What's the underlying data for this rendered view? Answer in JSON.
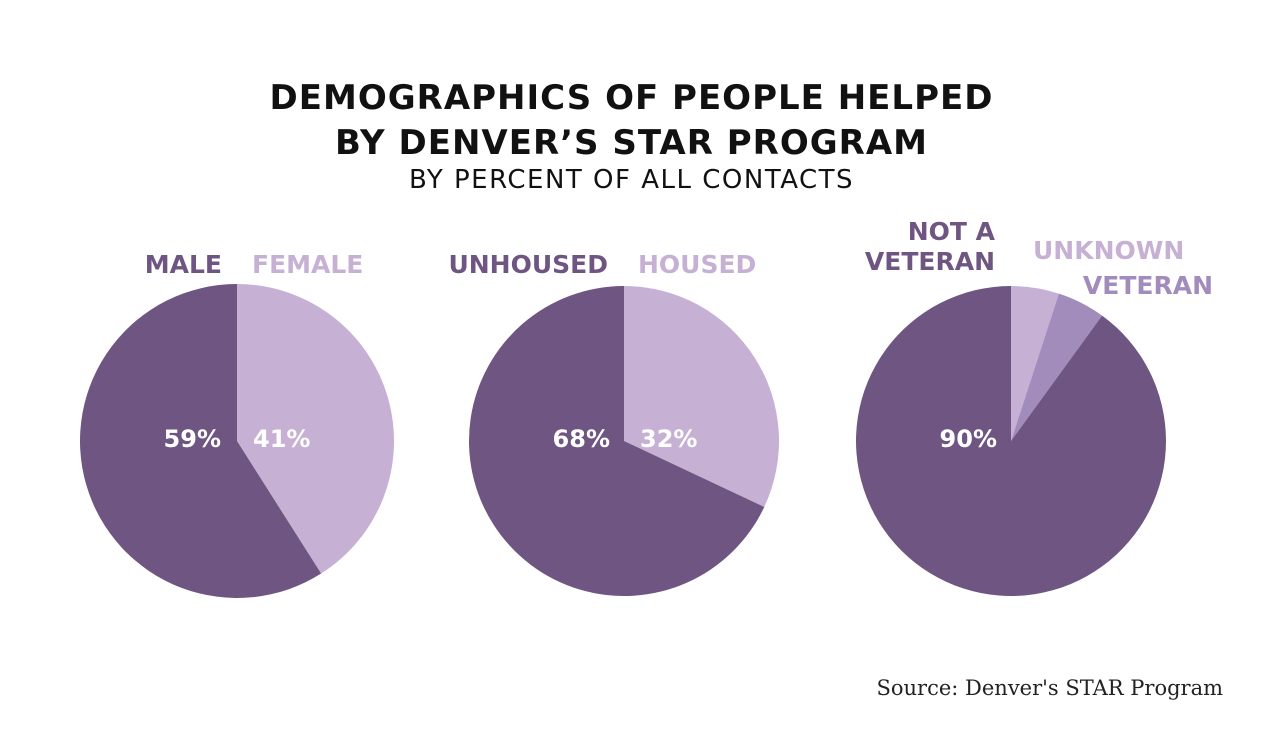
{
  "header": {
    "title_line1": "DEMOGRAPHICS OF PEOPLE HELPED",
    "title_line2": "BY DENVER’S STAR PROGRAM",
    "subtitle": "BY PERCENT OF ALL CONTACTS"
  },
  "source": "Source: Denver's STAR Program",
  "colors": {
    "dark": "#6e5582",
    "light": "#c6b0d4",
    "mid": "#a28cbc"
  },
  "chart_data": [
    {
      "type": "pie",
      "slices": [
        {
          "label": "MALE",
          "value": 59,
          "value_label": "59%",
          "color": "#6e5582"
        },
        {
          "label": "FEMALE",
          "value": 41,
          "value_label": "41%",
          "color": "#c6b0d4"
        }
      ]
    },
    {
      "type": "pie",
      "slices": [
        {
          "label": "UNHOUSED",
          "value": 68,
          "value_label": "68%",
          "color": "#6e5582"
        },
        {
          "label": "HOUSED",
          "value": 32,
          "value_label": "32%",
          "color": "#c6b0d4"
        }
      ]
    },
    {
      "type": "pie",
      "slices": [
        {
          "label": "NOT A VETERAN",
          "value": 90,
          "value_label": "90%",
          "color": "#6e5582"
        },
        {
          "label": "UNKNOWN",
          "value": 5,
          "value_label": "",
          "color": "#c6b0d4"
        },
        {
          "label": "VETERAN",
          "value": 5,
          "value_label": "",
          "color": "#a28cbc"
        }
      ]
    }
  ]
}
